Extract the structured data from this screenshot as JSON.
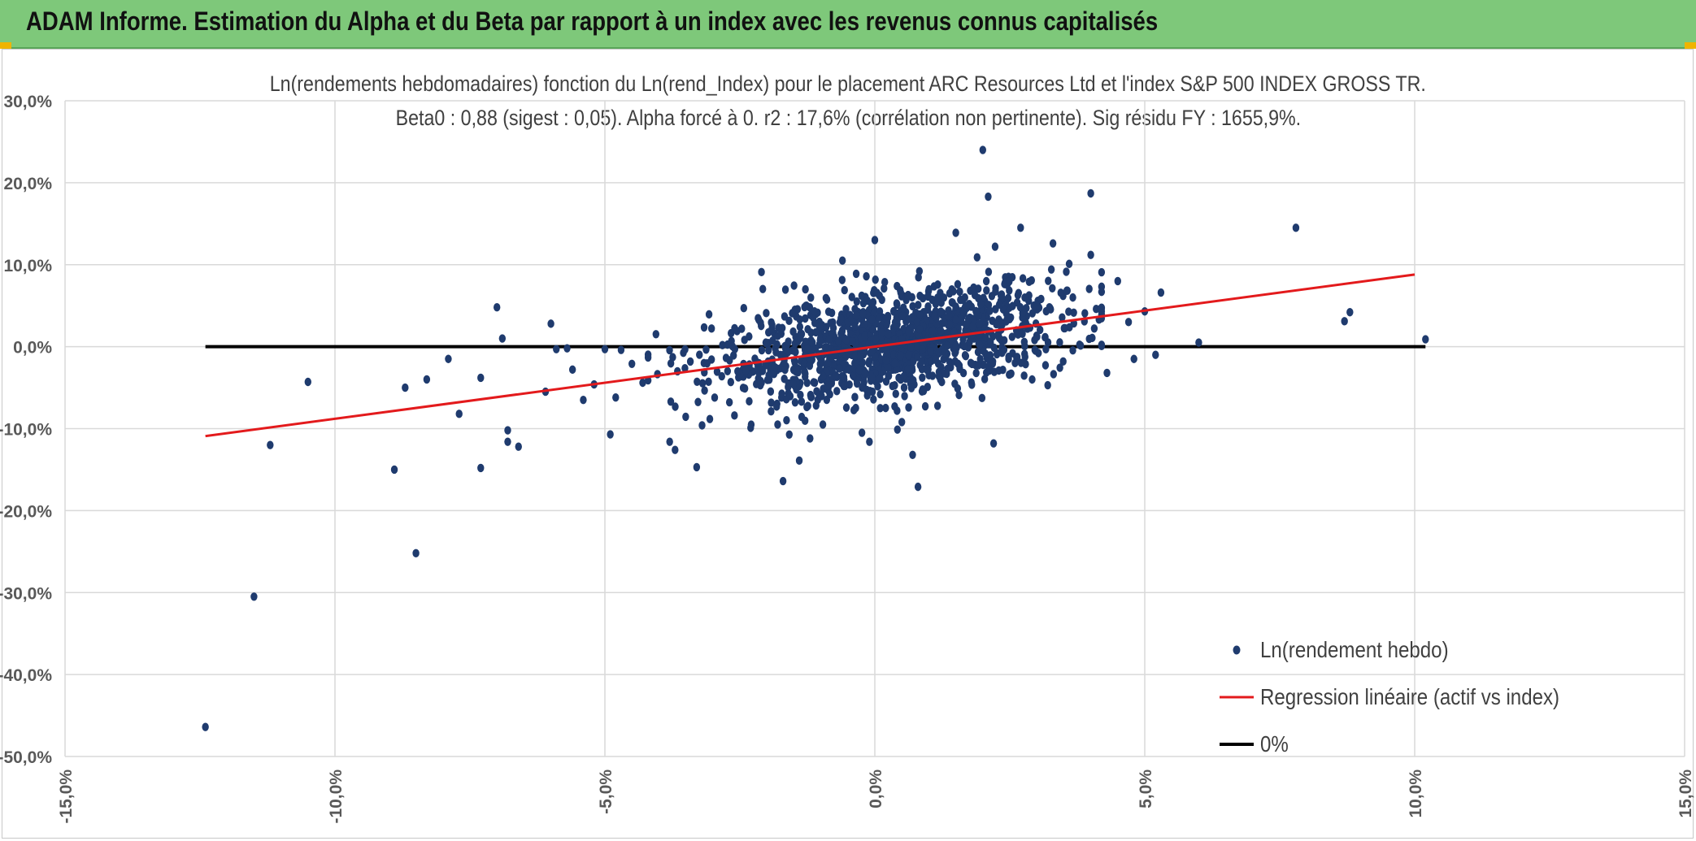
{
  "banner": {
    "title": "ADAM Informe. Estimation du Alpha et du Beta par rapport à un index avec les revenus connus capitalisés"
  },
  "colors": {
    "banner": "#7ec87a",
    "points": "#1f3b6e",
    "regression": "#e31a1c",
    "zero_line": "#000000",
    "grid": "#d9d9d9"
  },
  "chart_data": {
    "type": "scatter",
    "title": "Ln(rendements hebdomadaires) fonction du Ln(rend_Index) pour le placement ARC Resources Ltd et l'index S&P 500 INDEX GROSS TR.",
    "subtitle": "Beta0 : 0,88 (sigest : 0,05). Alpha forcé à 0. r2 : 17,6% (corrélation non pertinente). Sig résidu FY : 1655,9%.",
    "xlim": [
      -15,
      15
    ],
    "ylim": [
      -50,
      30
    ],
    "x_ticks": [
      "-15,0%",
      "-10,0%",
      "-5,0%",
      "0,0%",
      "5,0%",
      "10,0%",
      "15,0%"
    ],
    "y_ticks": [
      "30,0%",
      "20,0%",
      "10,0%",
      "0,0%",
      "-10,0%",
      "-20,0%",
      "-30,0%",
      "-40,0%",
      "-50,0%"
    ],
    "grid": true,
    "legend_position": "bottom-right",
    "legend": [
      "Ln(rendement hebdo)",
      "Regression linéaire (actif vs index)",
      "0%"
    ],
    "regression": {
      "beta": 0.88,
      "alpha": 0,
      "x_range": [
        -12.4,
        10
      ]
    },
    "zero_line": {
      "x_range": [
        -12.4,
        10.2
      ],
      "y": 0
    },
    "series": [
      {
        "name": "Ln(rendement hebdo)",
        "points": [
          [
            -12.4,
            -46.4
          ],
          [
            -11.5,
            -30.5
          ],
          [
            -11.2,
            -12.0
          ],
          [
            -10.5,
            -4.3
          ],
          [
            -8.9,
            -15.0
          ],
          [
            -8.7,
            -5.0
          ],
          [
            -8.5,
            -25.2
          ],
          [
            -8.3,
            -4.0
          ],
          [
            -7.9,
            -1.5
          ],
          [
            -7.7,
            -8.2
          ],
          [
            -7.3,
            -14.8
          ],
          [
            -7.3,
            -3.8
          ],
          [
            -7.0,
            4.8
          ],
          [
            -6.9,
            1.0
          ],
          [
            -6.8,
            -10.2
          ],
          [
            -6.8,
            -11.6
          ],
          [
            -6.6,
            -12.2
          ],
          [
            -6.1,
            -5.5
          ],
          [
            -6.0,
            2.8
          ],
          [
            -5.9,
            -0.3
          ],
          [
            -5.7,
            -0.2
          ],
          [
            -5.6,
            -2.8
          ],
          [
            -5.4,
            -6.5
          ],
          [
            -5.2,
            -4.6
          ],
          [
            -5.0,
            -0.3
          ],
          [
            -4.9,
            -10.7
          ],
          [
            -4.8,
            -6.2
          ],
          [
            -4.7,
            -0.4
          ],
          [
            -4.5,
            -2.1
          ],
          [
            -4.3,
            -4.4
          ],
          [
            -3.8,
            -11.6
          ],
          [
            -3.7,
            -12.6
          ],
          [
            -3.3,
            -14.7
          ],
          [
            -3.2,
            -9.6
          ],
          [
            -2.6,
            -8.4
          ],
          [
            -2.3,
            -9.9
          ],
          [
            -2.1,
            9.1
          ],
          [
            -1.8,
            -9.5
          ],
          [
            -1.7,
            -16.4
          ],
          [
            -1.4,
            -13.9
          ],
          [
            -1.2,
            -11.2
          ],
          [
            -0.6,
            10.5
          ],
          [
            -0.1,
            -11.6
          ],
          [
            0.0,
            13.0
          ],
          [
            0.5,
            -9.2
          ],
          [
            0.7,
            -13.2
          ],
          [
            0.8,
            -17.1
          ],
          [
            1.5,
            13.9
          ],
          [
            2.0,
            24.0
          ],
          [
            2.1,
            18.3
          ],
          [
            2.2,
            -11.8
          ],
          [
            2.7,
            14.5
          ],
          [
            3.3,
            12.6
          ],
          [
            3.6,
            10.1
          ],
          [
            4.0,
            18.7
          ],
          [
            4.0,
            11.2
          ],
          [
            4.1,
            4.6
          ],
          [
            4.3,
            -3.2
          ],
          [
            4.5,
            8.0
          ],
          [
            4.7,
            3.0
          ],
          [
            4.8,
            -1.5
          ],
          [
            5.0,
            4.3
          ],
          [
            5.2,
            -1.0
          ],
          [
            5.3,
            6.6
          ],
          [
            6.0,
            0.5
          ],
          [
            7.8,
            14.5
          ],
          [
            8.7,
            3.1
          ],
          [
            8.8,
            4.2
          ],
          [
            10.2,
            0.9
          ]
        ]
      }
    ]
  }
}
